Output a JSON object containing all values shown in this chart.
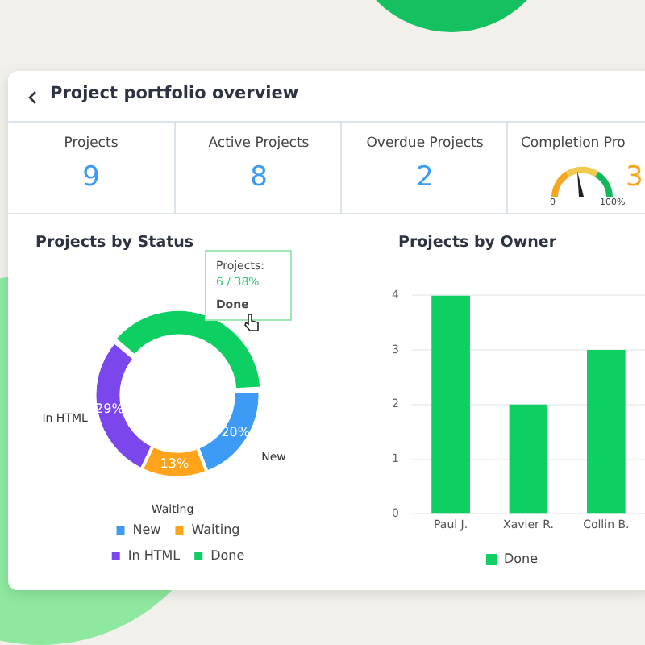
{
  "chart_data": [
    {
      "type": "other",
      "title": "Project portfolio overview",
      "categories": [
        "Projects",
        "Active Projects",
        "Overdue Projects",
        "Completion Pro"
      ],
      "colors": [
        "#3d9bf5",
        "#3d9bf5",
        "#3d9bf5",
        "#f5a623"
      ],
      "annotations": [
        "9",
        "8",
        "2",
        "3",
        "0",
        "100%"
      ]
    },
    {
      "type": "donut",
      "title": "Projects by Status",
      "categories": [
        "New",
        "Waiting",
        "In HTML",
        "Done"
      ],
      "values": [
        20,
        13,
        29,
        38
      ],
      "colors": [
        "#3d9bf5",
        "#ffa31a",
        "#7b46ec",
        "#0ecf61"
      ],
      "value_labels": [
        "20%",
        "13%",
        "29%",
        null
      ],
      "legend": "bottom",
      "annotations": [
        {
          "text": "New",
          "x": "New"
        },
        {
          "text": "Waiting",
          "x": "Waiting"
        },
        {
          "text": "In HTML",
          "x": "In HTML"
        },
        "Projects:",
        "6 / 38%",
        "Done"
      ]
    },
    {
      "type": "bar",
      "title": "Projects by Owner",
      "categories": [
        "Paul J.",
        "Xavier R.",
        "Collin B."
      ],
      "series": [
        {
          "name": "Done",
          "color": "#0ecf61",
          "values": [
            4,
            2,
            3
          ]
        }
      ],
      "ylim": [
        0,
        4
      ],
      "yticks": [
        0,
        1,
        2,
        3,
        4
      ],
      "grid": "y",
      "legend": "bottom"
    }
  ]
}
